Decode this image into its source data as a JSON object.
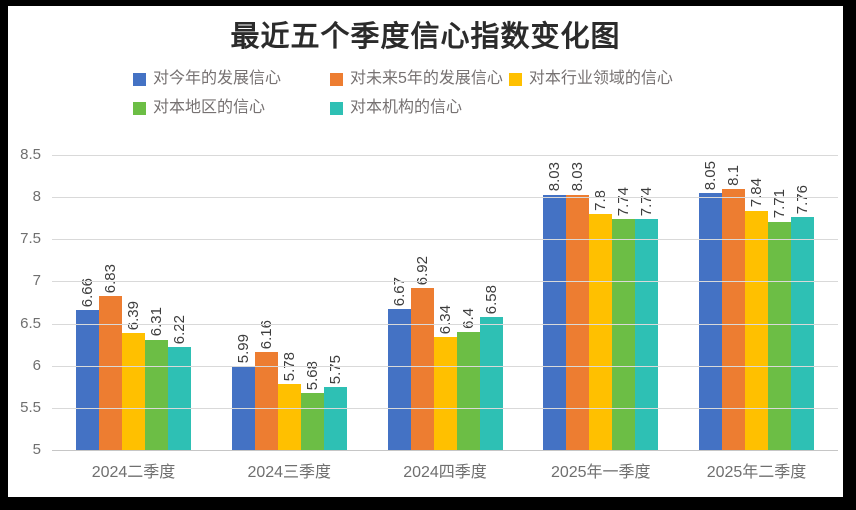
{
  "title": "最近五个季度信心指数变化图",
  "chart_data": {
    "type": "bar",
    "title": "最近五个季度信心指数变化图",
    "categories": [
      "2024二季度",
      "2024三季度",
      "2024四季度",
      "2025年一季度",
      "2025年二季度"
    ],
    "series": [
      {
        "name": "对今年的发展信心",
        "color": "#4472C4",
        "values": [
          6.66,
          5.99,
          6.67,
          8.03,
          8.05
        ]
      },
      {
        "name": "对未来5年的发展信心",
        "color": "#ED7D31",
        "values": [
          6.83,
          6.16,
          6.92,
          8.03,
          8.1
        ]
      },
      {
        "name": "对本行业领域的信心",
        "color": "#FFC000",
        "values": [
          6.39,
          5.78,
          6.34,
          7.8,
          7.84
        ]
      },
      {
        "name": "对本地区的信心",
        "color": "#6CBE45",
        "values": [
          6.31,
          5.68,
          6.4,
          7.74,
          7.71
        ]
      },
      {
        "name": "对本机构的信心",
        "color": "#2EC0B4",
        "values": [
          6.22,
          5.75,
          6.58,
          7.74,
          7.76
        ]
      }
    ],
    "ylim": [
      5,
      8.5
    ],
    "yticks": [
      8.5,
      8,
      7.5,
      7,
      6.5,
      6,
      5.5,
      5
    ],
    "grid": true,
    "legend_position": "top",
    "legend_rows": [
      [
        0,
        1,
        2
      ],
      [
        3,
        4
      ]
    ],
    "data_labels": "rotated-90-above-bars",
    "xlabel": "",
    "ylabel": ""
  },
  "colors": {
    "frame_border": "#000000",
    "background": "#ffffff",
    "title_text": "#2b2b2b",
    "legend_text": "#767171",
    "axis_text": "#6f6f6f",
    "data_label_text": "#3d3d3d",
    "gridline": "#d9d9d9"
  }
}
